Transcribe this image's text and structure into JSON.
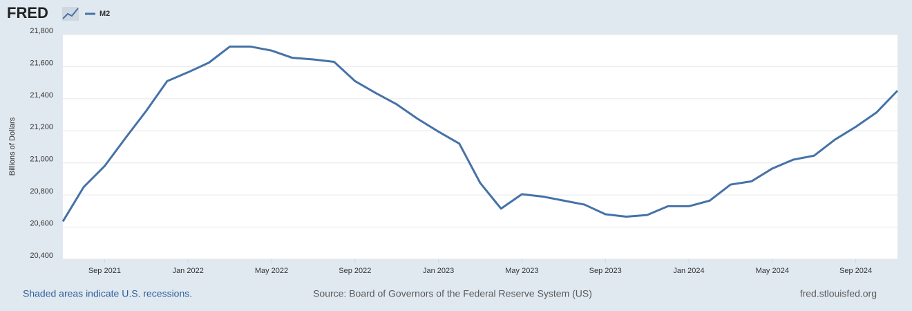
{
  "chart_data": {
    "type": "line",
    "logo": "FRED",
    "ylabel": "Billions of Dollars",
    "footer_left": "Shaded areas indicate U.S. recessions.",
    "footer_center": "Source: Board of Governors of the Federal Reserve System (US)",
    "footer_right": "fred.stlouisfed.org",
    "x": [
      "2021-07",
      "2021-08",
      "2021-09",
      "2021-10",
      "2021-11",
      "2021-12",
      "2022-01",
      "2022-02",
      "2022-03",
      "2022-04",
      "2022-05",
      "2022-06",
      "2022-07",
      "2022-08",
      "2022-09",
      "2022-10",
      "2022-11",
      "2022-12",
      "2023-01",
      "2023-02",
      "2023-03",
      "2023-04",
      "2023-05",
      "2023-06",
      "2023-07",
      "2023-08",
      "2023-09",
      "2023-10",
      "2023-11",
      "2023-12",
      "2024-01",
      "2024-02",
      "2024-03",
      "2024-04",
      "2024-05",
      "2024-06",
      "2024-07",
      "2024-08",
      "2024-09",
      "2024-10",
      "2024-11"
    ],
    "series": [
      {
        "name": "M2",
        "color": "#4572a7",
        "values": [
          20635,
          20850,
          20980,
          21155,
          21325,
          21510,
          21565,
          21625,
          21725,
          21725,
          21700,
          21655,
          21645,
          21630,
          21510,
          21435,
          21365,
          21275,
          21195,
          21120,
          20875,
          20715,
          20805,
          20790,
          20765,
          20740,
          20680,
          20665,
          20675,
          20730,
          20730,
          20765,
          20865,
          20885,
          20965,
          21020,
          21045,
          21145,
          21225,
          21315,
          21450
        ]
      }
    ],
    "xlim": [
      "2021-07",
      "2024-11"
    ],
    "xticks": [
      {
        "value": "2021-09",
        "label": "Sep 2021"
      },
      {
        "value": "2022-01",
        "label": "Jan 2022"
      },
      {
        "value": "2022-05",
        "label": "May 2022"
      },
      {
        "value": "2022-09",
        "label": "Sep 2022"
      },
      {
        "value": "2023-01",
        "label": "Jan 2023"
      },
      {
        "value": "2023-05",
        "label": "May 2023"
      },
      {
        "value": "2023-09",
        "label": "Sep 2023"
      },
      {
        "value": "2024-01",
        "label": "Jan 2024"
      },
      {
        "value": "2024-05",
        "label": "May 2024"
      },
      {
        "value": "2024-09",
        "label": "Sep 2024"
      }
    ],
    "ylim": [
      20400,
      21800
    ],
    "yticks": [
      {
        "value": 20400,
        "label": "20,400"
      },
      {
        "value": 20600,
        "label": "20,600"
      },
      {
        "value": 20800,
        "label": "20,800"
      },
      {
        "value": 21000,
        "label": "21,000"
      },
      {
        "value": 21200,
        "label": "21,200"
      },
      {
        "value": 21400,
        "label": "21,400"
      },
      {
        "value": 21600,
        "label": "21,600"
      },
      {
        "value": 21800,
        "label": "21,800"
      }
    ],
    "grid": true
  }
}
